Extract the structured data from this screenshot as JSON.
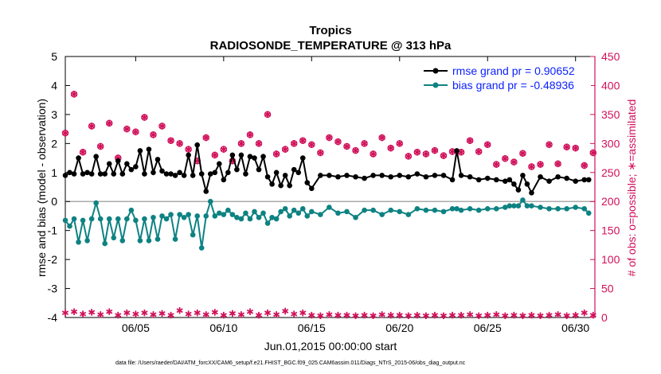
{
  "chart_data": {
    "type": "line",
    "title": "Tropics",
    "subtitle": "RADIOSONDE_TEMPERATURE @ 313 hPa",
    "xlabel": "Jun.01,2015 00:00:00 start",
    "ylabel": "rmse and bias (model - observation)",
    "y2label": "# of obs: o=possible; ∗=assimilated",
    "xlim": [
      1,
      31.1
    ],
    "ylim": [
      -4,
      5
    ],
    "y2lim": [
      0,
      450
    ],
    "x_tick_values": [
      5,
      10,
      15,
      20,
      25,
      30
    ],
    "x_tick_labels": [
      "06/05",
      "06/10",
      "06/15",
      "06/20",
      "06/25",
      "06/30"
    ],
    "y_ticks": [
      -4,
      -3,
      -2,
      -1,
      0,
      1,
      2,
      3,
      4,
      5
    ],
    "y2_ticks": [
      0,
      50,
      100,
      150,
      200,
      250,
      300,
      350,
      400,
      450
    ],
    "zero_line": 0,
    "legend_position": "top-right",
    "colors": {
      "rmse": "#000000",
      "bias": "#0e8282",
      "obs": "#d0105a",
      "legend_text": "#0a1fff",
      "zero_line": "#aaaaaa"
    },
    "series": [
      {
        "name": "rmse grand pr = 0.90652",
        "axis": "left",
        "x": [
          1.0,
          1.25,
          1.5,
          1.75,
          2.0,
          2.25,
          2.5,
          2.75,
          3.0,
          3.25,
          3.5,
          3.75,
          4.0,
          4.25,
          4.5,
          4.75,
          5.0,
          5.25,
          5.5,
          5.75,
          6.0,
          6.25,
          6.5,
          6.75,
          7.0,
          7.25,
          7.5,
          7.75,
          8.0,
          8.25,
          8.5,
          8.75,
          9.0,
          9.25,
          9.5,
          9.75,
          10.0,
          10.25,
          10.5,
          10.75,
          11.0,
          11.25,
          11.5,
          11.75,
          12.0,
          12.25,
          12.5,
          12.75,
          13.0,
          13.25,
          13.5,
          13.75,
          14.0,
          14.25,
          14.5,
          14.75,
          15.0,
          15.5,
          16.0,
          16.5,
          17.0,
          17.5,
          18.0,
          18.5,
          19.0,
          19.5,
          20.0,
          20.5,
          21.0,
          21.5,
          22.0,
          22.5,
          23.0,
          23.25,
          23.5,
          24.0,
          24.5,
          25.0,
          25.5,
          26.0,
          26.25,
          26.5,
          26.75,
          27.0,
          27.25,
          27.5,
          28.0,
          28.5,
          29.0,
          29.5,
          30.0,
          30.5,
          30.75
        ],
        "values": [
          0.9,
          1.0,
          0.95,
          1.5,
          0.95,
          1.0,
          0.95,
          1.55,
          0.95,
          0.95,
          1.3,
          0.95,
          1.4,
          0.95,
          1.3,
          1.1,
          1.2,
          1.75,
          0.95,
          1.8,
          1.0,
          1.45,
          1.05,
          0.95,
          0.95,
          0.9,
          1.0,
          0.9,
          1.6,
          0.9,
          1.95,
          0.95,
          0.35,
          0.95,
          1.0,
          1.3,
          0.75,
          1.0,
          1.6,
          1.1,
          1.6,
          0.95,
          1.55,
          1.5,
          1.1,
          1.55,
          0.85,
          0.6,
          1.0,
          0.55,
          0.9,
          0.55,
          1.1,
          1.0,
          1.5,
          0.65,
          0.45,
          0.9,
          0.9,
          0.85,
          0.9,
          0.85,
          0.8,
          0.9,
          0.9,
          0.85,
          0.9,
          0.85,
          0.95,
          0.85,
          0.9,
          0.9,
          0.75,
          1.75,
          0.9,
          0.85,
          0.75,
          0.8,
          0.75,
          0.7,
          0.75,
          0.6,
          0.4,
          0.9,
          0.6,
          0.3,
          0.85,
          0.7,
          0.85,
          0.8,
          0.7,
          0.75,
          0.75
        ]
      },
      {
        "name": "bias grand pr = -0.48936",
        "axis": "left",
        "x": [
          1.0,
          1.25,
          1.5,
          1.75,
          2.0,
          2.25,
          2.5,
          2.75,
          3.0,
          3.25,
          3.5,
          3.75,
          4.0,
          4.25,
          4.5,
          4.75,
          5.0,
          5.25,
          5.5,
          5.75,
          6.0,
          6.25,
          6.5,
          6.75,
          7.0,
          7.25,
          7.5,
          7.75,
          8.0,
          8.25,
          8.5,
          8.75,
          9.0,
          9.25,
          9.5,
          9.75,
          10.0,
          10.25,
          10.5,
          10.75,
          11.0,
          11.25,
          11.5,
          11.75,
          12.0,
          12.25,
          12.5,
          12.75,
          13.0,
          13.25,
          13.5,
          13.75,
          14.0,
          14.25,
          14.5,
          14.75,
          15.0,
          15.5,
          16.0,
          16.5,
          17.0,
          17.5,
          18.0,
          18.5,
          19.0,
          19.5,
          20.0,
          20.5,
          21.0,
          21.5,
          22.0,
          22.5,
          23.0,
          23.25,
          23.5,
          24.0,
          24.5,
          25.0,
          25.5,
          26.0,
          26.25,
          26.5,
          26.75,
          27.0,
          27.25,
          27.5,
          28.0,
          28.5,
          29.0,
          29.5,
          30.0,
          30.5,
          30.75
        ],
        "values": [
          -0.65,
          -0.85,
          -0.6,
          -1.4,
          -0.65,
          -1.35,
          -0.6,
          -0.05,
          -0.6,
          -1.45,
          -0.6,
          -1.25,
          -0.6,
          -1.35,
          -0.6,
          -0.3,
          -0.65,
          -1.35,
          -0.6,
          -1.35,
          -0.55,
          -1.3,
          -0.5,
          -0.6,
          -0.45,
          -1.3,
          -0.45,
          -0.55,
          -0.45,
          -1.15,
          -0.5,
          -1.6,
          -0.5,
          0.0,
          -0.5,
          -0.4,
          -0.45,
          -0.3,
          -0.45,
          -0.55,
          -0.6,
          -0.4,
          -0.6,
          -0.35,
          -0.55,
          -0.4,
          -0.75,
          -0.55,
          -0.6,
          -0.35,
          -0.25,
          -0.5,
          -0.3,
          -0.4,
          -0.25,
          -0.5,
          -0.35,
          -0.45,
          -0.2,
          -0.4,
          -0.35,
          -0.55,
          -0.3,
          -0.3,
          -0.45,
          -0.3,
          -0.35,
          -0.45,
          -0.25,
          -0.3,
          -0.3,
          -0.35,
          -0.25,
          -0.25,
          -0.3,
          -0.25,
          -0.3,
          -0.25,
          -0.25,
          -0.2,
          -0.15,
          -0.15,
          -0.15,
          0.05,
          -0.15,
          -0.15,
          -0.2,
          -0.25,
          -0.25,
          -0.25,
          -0.2,
          -0.25,
          -0.4
        ]
      },
      {
        "name": "# obs possible",
        "axis": "right",
        "marker": "o",
        "x": [
          1.0,
          1.5,
          2.0,
          2.5,
          3.0,
          3.5,
          4.0,
          4.5,
          5.0,
          5.5,
          6.0,
          6.5,
          7.0,
          7.5,
          8.0,
          8.5,
          9.0,
          9.5,
          10.0,
          10.5,
          11.0,
          11.5,
          12.0,
          12.5,
          13.0,
          13.5,
          14.0,
          14.5,
          15.0,
          15.5,
          16.0,
          16.5,
          17.0,
          17.5,
          18.0,
          18.5,
          19.0,
          19.5,
          20.0,
          20.5,
          21.0,
          21.5,
          22.0,
          22.5,
          23.0,
          23.5,
          24.0,
          24.5,
          25.0,
          25.5,
          26.0,
          26.5,
          27.0,
          27.5,
          28.0,
          28.5,
          29.0,
          29.5,
          30.0,
          30.5,
          31.0
        ],
        "values": [
          318,
          385,
          285,
          330,
          295,
          335,
          275,
          325,
          320,
          345,
          315,
          330,
          305,
          300,
          290,
          270,
          310,
          280,
          290,
          270,
          300,
          315,
          300,
          350,
          282,
          290,
          300,
          305,
          298,
          284,
          310,
          303,
          295,
          288,
          300,
          282,
          310,
          292,
          300,
          278,
          285,
          282,
          288,
          279,
          286,
          285,
          305,
          286,
          298,
          264,
          274,
          268,
          283,
          260,
          264,
          298,
          265,
          294,
          292,
          262,
          284
        ]
      },
      {
        "name": "# obs assimilated",
        "axis": "right",
        "marker": "*",
        "x": [
          1.0,
          1.5,
          2.0,
          2.5,
          3.0,
          3.5,
          4.0,
          4.5,
          5.0,
          5.5,
          6.0,
          6.5,
          7.0,
          7.5,
          8.0,
          8.5,
          9.0,
          9.5,
          10.0,
          10.5,
          11.0,
          11.5,
          12.0,
          12.5,
          13.0,
          13.5,
          14.0,
          14.5,
          15.0,
          15.5,
          16.0,
          16.5,
          17.0,
          17.5,
          18.0,
          18.5,
          19.0,
          19.5,
          20.0,
          20.5,
          21.0,
          21.5,
          22.0,
          22.5,
          23.0,
          23.5,
          24.0,
          24.5,
          25.0,
          25.5,
          26.0,
          26.5,
          27.0,
          27.5,
          28.0,
          28.5,
          29.0,
          29.5,
          30.0,
          30.5,
          31.0
        ],
        "values": [
          8,
          10,
          6,
          9,
          5,
          10,
          4,
          8,
          6,
          8,
          5,
          7,
          4,
          12,
          6,
          8,
          5,
          9,
          4,
          7,
          5,
          10,
          4,
          8,
          5,
          11,
          6,
          8,
          4,
          3,
          5,
          4,
          4,
          3,
          4,
          3,
          5,
          4,
          4,
          3,
          4,
          3,
          4,
          3,
          4,
          4,
          5,
          3,
          4,
          5,
          3,
          4,
          3,
          4,
          3,
          4,
          5,
          3,
          4,
          8,
          4
        ]
      }
    ]
  },
  "footer": {
    "data_file": "data file: /Users/raeder/DAI/ATM_forcXX/CAM6_setup/f.e21.FHIST_BGC.f09_025.CAM6assim.011/Diags_NTrS_2015-06/obs_diag_output.nc"
  }
}
